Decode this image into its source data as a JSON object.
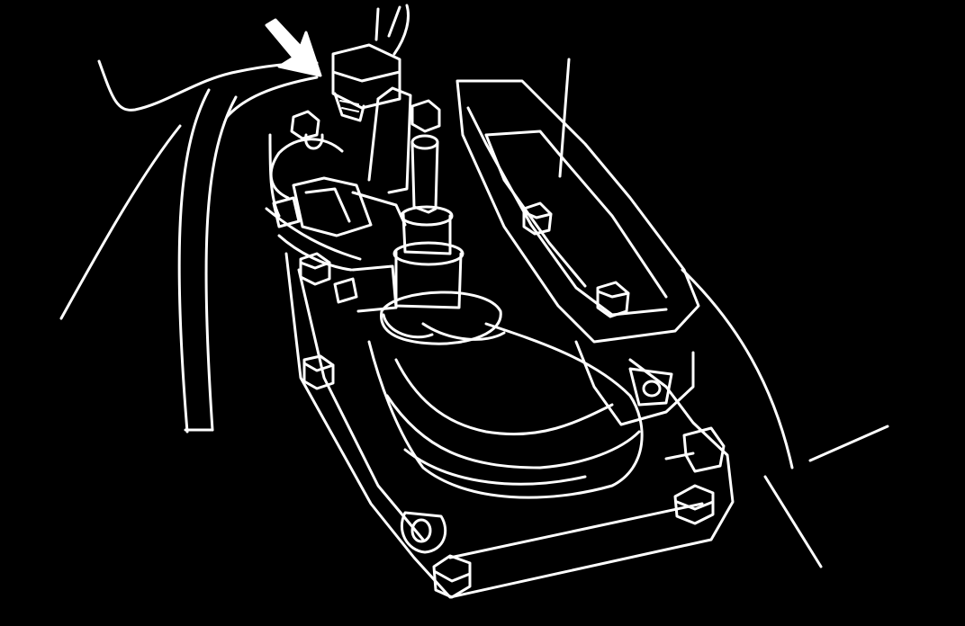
{
  "figure": {
    "background_color": "#000000",
    "line_color": "#ffffff",
    "callout_arrow": {
      "icon": "pointer-arrow-icon",
      "direction": "down-right",
      "color": "#ffffff"
    },
    "subject": "shift-lever-assembly-with-connector"
  }
}
